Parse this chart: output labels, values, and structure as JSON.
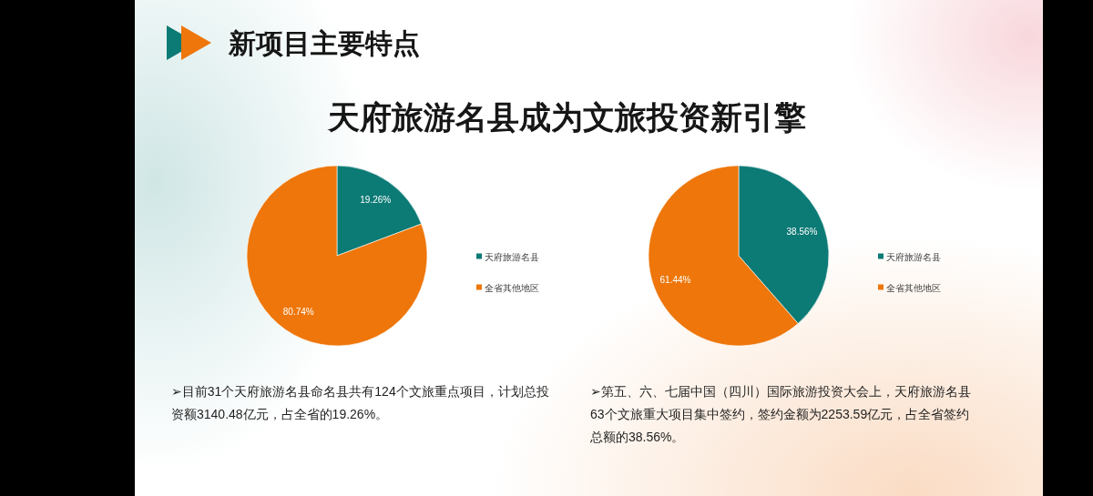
{
  "chart_data": [
    {
      "type": "pie",
      "title": "新项目主要特点",
      "subtitle": "天府旅游名县成为文旅投资新引擎",
      "categories": [
        "天府旅游名县",
        "全省其他地区"
      ],
      "values": [
        19.26,
        80.74
      ],
      "colors": [
        "#0c7a75",
        "#ee760a"
      ],
      "value_labels": [
        "19.26%",
        "80.74%"
      ],
      "legend": "right",
      "annotations": [
        "➢目前31个天府旅游名县命名县共有124个文旅重点项目，计划总投资额3140.48亿元，占全省的19.26%。"
      ]
    },
    {
      "type": "pie",
      "categories": [
        "天府旅游名县",
        "全省其他地区"
      ],
      "values": [
        38.56,
        61.44
      ],
      "colors": [
        "#0c7a75",
        "#ee760a"
      ],
      "value_labels": [
        "38.56%",
        "61.44%"
      ],
      "legend": "right",
      "annotations": [
        "➢第五、六、七届中国（四川）国际旅游投资大会上，天府旅游名县63个文旅重大项目集中签约，签约金额为2253.59亿元，占全省签约总额的38.56%。"
      ]
    }
  ]
}
